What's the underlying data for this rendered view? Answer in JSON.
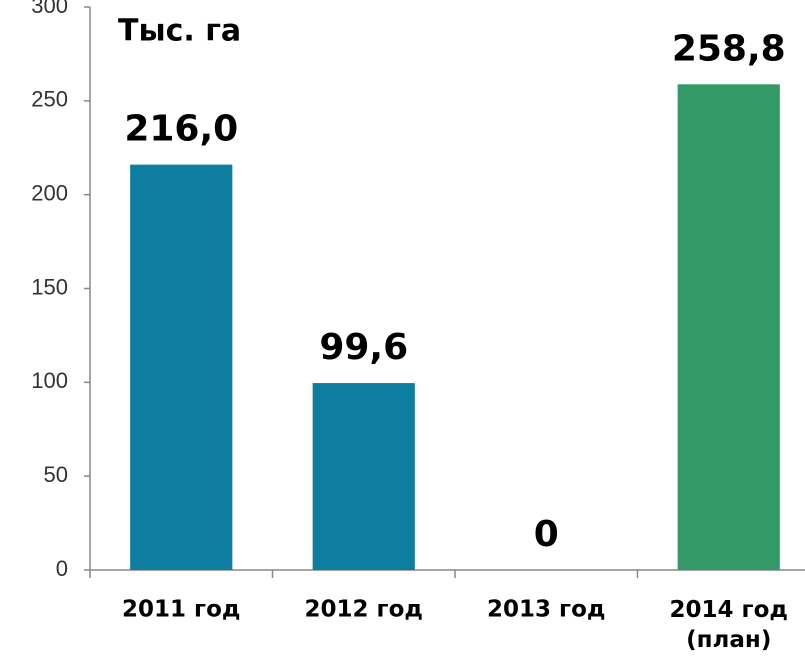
{
  "chart_data": {
    "type": "bar",
    "title": "Тыс. га",
    "categories": [
      "2011 год",
      "2012 год",
      "2013 год",
      "2014 год\n(план)"
    ],
    "values": [
      216.0,
      99.6,
      0,
      258.8
    ],
    "value_labels": [
      "216,0",
      "99,6",
      "0",
      "258,8"
    ],
    "colors": [
      "#0e7ea0",
      "#0e7ea0",
      "#0e7ea0",
      "#339966"
    ],
    "ylim": [
      0,
      300
    ],
    "yticks": [
      0,
      50,
      100,
      150,
      200,
      250,
      300
    ],
    "grid": false
  }
}
